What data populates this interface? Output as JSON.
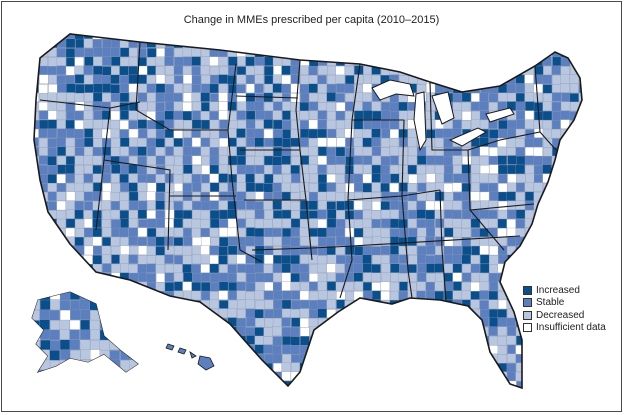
{
  "title": "Change in MMEs prescribed per capita (2010–2015)",
  "colors": {
    "increased": "#0a4f8c",
    "stable": "#5c7fbf",
    "decreased": "#b9c6e0",
    "insufficient": "#ffffff",
    "border": "#1a1a1a",
    "county_line": "#8c97ad"
  },
  "legend": [
    {
      "key": "increased",
      "label": "Increased"
    },
    {
      "key": "stable",
      "label": "Stable"
    },
    {
      "key": "decreased",
      "label": "Decreased"
    },
    {
      "key": "insufficient",
      "label": "Insufficient data"
    }
  ]
}
